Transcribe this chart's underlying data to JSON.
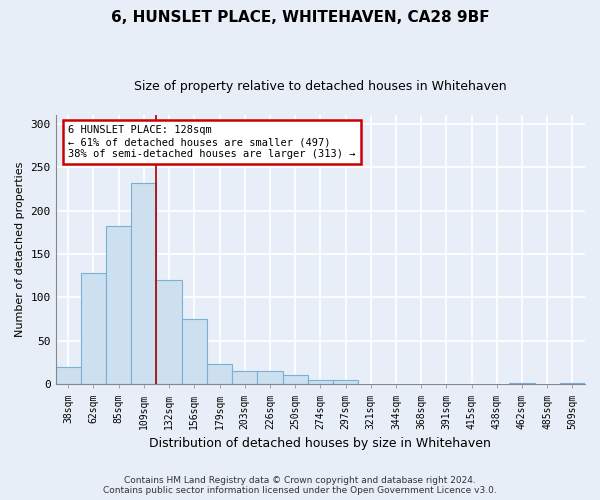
{
  "title": "6, HUNSLET PLACE, WHITEHAVEN, CA28 9BF",
  "subtitle": "Size of property relative to detached houses in Whitehaven",
  "xlabel": "Distribution of detached houses by size in Whitehaven",
  "ylabel": "Number of detached properties",
  "bin_labels": [
    "38sqm",
    "62sqm",
    "85sqm",
    "109sqm",
    "132sqm",
    "156sqm",
    "179sqm",
    "203sqm",
    "226sqm",
    "250sqm",
    "274sqm",
    "297sqm",
    "321sqm",
    "344sqm",
    "368sqm",
    "391sqm",
    "415sqm",
    "438sqm",
    "462sqm",
    "485sqm",
    "509sqm"
  ],
  "bar_values": [
    20,
    128,
    182,
    232,
    120,
    75,
    23,
    15,
    15,
    11,
    5,
    5,
    0,
    0,
    0,
    0,
    0,
    0,
    2,
    0,
    2
  ],
  "bar_color": "#cce0f0",
  "bar_edge_color": "#7ab0d4",
  "vline_color": "#aa0000",
  "vline_position": 3.5,
  "annotation_text": "6 HUNSLET PLACE: 128sqm\n← 61% of detached houses are smaller (497)\n38% of semi-detached houses are larger (313) →",
  "annotation_box_color": "#ffffff",
  "annotation_box_edge_color": "#cc0000",
  "ylim": [
    0,
    310
  ],
  "yticks": [
    0,
    50,
    100,
    150,
    200,
    250,
    300
  ],
  "footnote": "Contains HM Land Registry data © Crown copyright and database right 2024.\nContains public sector information licensed under the Open Government Licence v3.0.",
  "bg_color": "#e8eef8",
  "grid_color": "#ffffff",
  "title_fontsize": 11,
  "subtitle_fontsize": 9
}
